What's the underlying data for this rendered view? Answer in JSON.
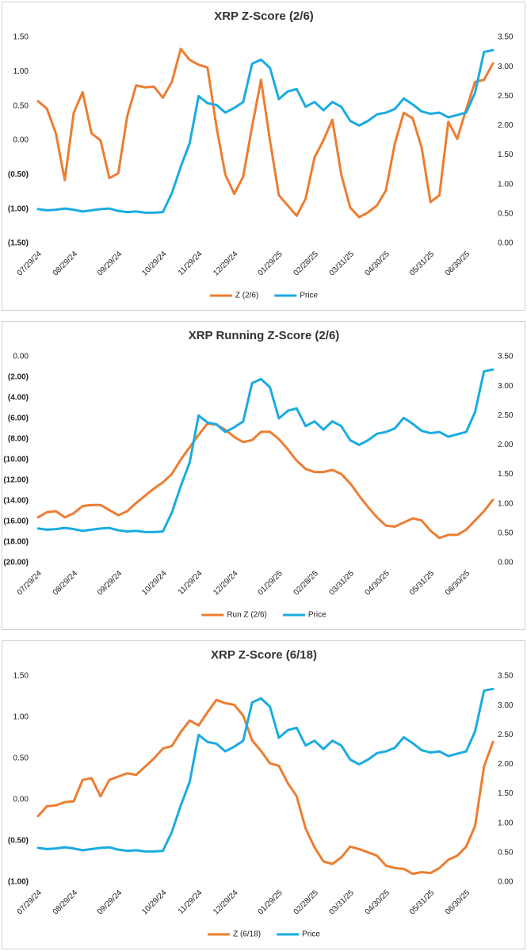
{
  "chart_data": [
    {
      "type": "line",
      "title": "XRP Z-Score (2/6)",
      "categories": [
        "07/29/24",
        null,
        null,
        null,
        "08/29/24",
        null,
        null,
        null,
        null,
        "09/29/24",
        null,
        null,
        null,
        null,
        "10/29/24",
        null,
        null,
        null,
        "11/29/24",
        null,
        null,
        null,
        "12/29/24",
        null,
        null,
        null,
        null,
        "01/29/25",
        null,
        null,
        null,
        "02/28/25",
        null,
        null,
        null,
        "03/31/25",
        null,
        null,
        null,
        "04/30/25",
        null,
        null,
        null,
        null,
        "05/31/25",
        null,
        null,
        null,
        "06/30/25",
        null,
        null,
        null
      ],
      "series": [
        {
          "name": "Z (2/6)",
          "color": "#ED7D31",
          "axis": "y",
          "values": [
            0.57,
            0.46,
            0.1,
            -0.58,
            0.4,
            0.7,
            0.1,
            0.0,
            -0.55,
            -0.48,
            0.35,
            0.8,
            0.77,
            0.78,
            0.62,
            0.85,
            1.33,
            1.17,
            1.1,
            1.06,
            0.2,
            -0.5,
            -0.78,
            -0.53,
            0.2,
            0.88,
            0.0,
            -0.8,
            -0.95,
            -1.1,
            -0.85,
            -0.25,
            0.0,
            0.3,
            -0.5,
            -0.98,
            -1.12,
            -1.05,
            -0.95,
            -0.73,
            -0.05,
            0.4,
            0.32,
            -0.1,
            -0.9,
            -0.8,
            0.27,
            0.02,
            0.45,
            0.85,
            0.88,
            1.12
          ]
        },
        {
          "name": "Price",
          "color": "#1AABE2",
          "axis": "y2",
          "values": [
            0.58,
            0.56,
            0.57,
            0.59,
            0.57,
            0.54,
            0.56,
            0.58,
            0.59,
            0.55,
            0.53,
            0.54,
            0.52,
            0.52,
            0.53,
            0.85,
            1.3,
            1.7,
            2.5,
            2.38,
            2.35,
            2.22,
            2.3,
            2.4,
            3.05,
            3.12,
            2.98,
            2.45,
            2.58,
            2.62,
            2.32,
            2.4,
            2.26,
            2.4,
            2.32,
            2.08,
            2.0,
            2.08,
            2.19,
            2.22,
            2.28,
            2.46,
            2.36,
            2.24,
            2.2,
            2.22,
            2.14,
            2.18,
            2.22,
            2.56,
            3.25,
            3.28
          ]
        }
      ],
      "ylim": [
        -1.5,
        1.5
      ],
      "yticks": [
        {
          "value": 1.5,
          "label": "1.50"
        },
        {
          "value": 1,
          "label": "1.00"
        },
        {
          "value": 0.5,
          "label": "0.50"
        },
        {
          "value": 0,
          "label": "0.00"
        },
        {
          "value": -0.5,
          "label": "(0.50)"
        },
        {
          "value": -1,
          "label": "(1.00)"
        },
        {
          "value": -1.5,
          "label": "(1.50)"
        }
      ],
      "y2lim": [
        0,
        3.5
      ],
      "y2ticks": [
        {
          "value": 0,
          "label": "0.00"
        },
        {
          "value": 0.5,
          "label": "0.50"
        },
        {
          "value": 1,
          "label": "1.00"
        },
        {
          "value": 1.5,
          "label": "1.50"
        },
        {
          "value": 2,
          "label": "2.00"
        },
        {
          "value": 2.5,
          "label": "2.50"
        },
        {
          "value": 3,
          "label": "3.00"
        },
        {
          "value": 3.5,
          "label": "3.50"
        }
      ],
      "legend": "bottom",
      "grid": false
    },
    {
      "type": "line",
      "title": "XRP Running Z-Score (2/6)",
      "categories": [
        "07/29/24",
        null,
        null,
        null,
        "08/29/24",
        null,
        null,
        null,
        null,
        "09/29/24",
        null,
        null,
        null,
        null,
        "10/29/24",
        null,
        null,
        null,
        "11/29/24",
        null,
        null,
        null,
        "12/29/24",
        null,
        null,
        null,
        null,
        "01/29/25",
        null,
        null,
        null,
        "02/28/25",
        null,
        null,
        null,
        "03/31/25",
        null,
        null,
        null,
        "04/30/25",
        null,
        null,
        null,
        null,
        "05/31/25",
        null,
        null,
        null,
        "06/30/25",
        null,
        null,
        null
      ],
      "series": [
        {
          "name": "Run Z (2/6)",
          "color": "#ED7D31",
          "axis": "y",
          "values": [
            -15.6,
            -15.1,
            -15.0,
            -15.6,
            -15.2,
            -14.5,
            -14.4,
            -14.4,
            -14.9,
            -15.4,
            -15.0,
            -14.2,
            -13.5,
            -12.8,
            -12.2,
            -11.4,
            -10.0,
            -8.8,
            -7.6,
            -6.5,
            -6.6,
            -7.1,
            -7.8,
            -8.3,
            -8.1,
            -7.3,
            -7.3,
            -8.0,
            -9.0,
            -10.1,
            -10.9,
            -11.2,
            -11.2,
            -11.0,
            -11.4,
            -12.3,
            -13.5,
            -14.6,
            -15.6,
            -16.4,
            -16.5,
            -16.1,
            -15.7,
            -15.9,
            -16.9,
            -17.6,
            -17.3,
            -17.3,
            -16.8,
            -15.9,
            -15.0,
            -13.9
          ]
        },
        {
          "name": "Price",
          "color": "#1AABE2",
          "axis": "y2",
          "values": [
            0.58,
            0.56,
            0.57,
            0.59,
            0.57,
            0.54,
            0.56,
            0.58,
            0.59,
            0.55,
            0.53,
            0.54,
            0.52,
            0.52,
            0.53,
            0.85,
            1.3,
            1.7,
            2.5,
            2.38,
            2.35,
            2.22,
            2.3,
            2.4,
            3.05,
            3.12,
            2.98,
            2.45,
            2.58,
            2.62,
            2.32,
            2.4,
            2.26,
            2.4,
            2.32,
            2.08,
            2.0,
            2.08,
            2.19,
            2.22,
            2.28,
            2.46,
            2.36,
            2.24,
            2.2,
            2.22,
            2.14,
            2.18,
            2.22,
            2.56,
            3.25,
            3.28
          ]
        }
      ],
      "ylim": [
        -20,
        0
      ],
      "yticks": [
        {
          "value": 0,
          "label": "0.00"
        },
        {
          "value": -2,
          "label": "(2.00)"
        },
        {
          "value": -4,
          "label": "(4.00)"
        },
        {
          "value": -6,
          "label": "(6.00)"
        },
        {
          "value": -8,
          "label": "(8.00)"
        },
        {
          "value": -10,
          "label": "(10.00)"
        },
        {
          "value": -12,
          "label": "(12.00)"
        },
        {
          "value": -14,
          "label": "(14.00)"
        },
        {
          "value": -16,
          "label": "(16.00)"
        },
        {
          "value": -18,
          "label": "(18.00)"
        },
        {
          "value": -20,
          "label": "(20.00)"
        }
      ],
      "y2lim": [
        0,
        3.5
      ],
      "y2ticks": [
        {
          "value": 0,
          "label": "0.00"
        },
        {
          "value": 0.5,
          "label": "0.50"
        },
        {
          "value": 1,
          "label": "1.00"
        },
        {
          "value": 1.5,
          "label": "1.50"
        },
        {
          "value": 2,
          "label": "2.00"
        },
        {
          "value": 2.5,
          "label": "2.50"
        },
        {
          "value": 3,
          "label": "3.00"
        },
        {
          "value": 3.5,
          "label": "3.50"
        }
      ],
      "legend": "bottom",
      "grid": false
    },
    {
      "type": "line",
      "title": "XRP Z-Score (6/18)",
      "categories": [
        "07/29/24",
        null,
        null,
        null,
        "08/29/24",
        null,
        null,
        null,
        null,
        "09/29/24",
        null,
        null,
        null,
        null,
        "10/29/24",
        null,
        null,
        null,
        "11/29/24",
        null,
        null,
        null,
        "12/29/24",
        null,
        null,
        null,
        null,
        "01/29/25",
        null,
        null,
        null,
        "02/28/25",
        null,
        null,
        null,
        "03/31/25",
        null,
        null,
        null,
        "04/30/25",
        null,
        null,
        null,
        null,
        "05/31/25",
        null,
        null,
        null,
        "06/30/25",
        null,
        null,
        null
      ],
      "series": [
        {
          "name": "Z (6/18)",
          "color": "#ED7D31",
          "axis": "y",
          "values": [
            -0.2,
            -0.08,
            -0.07,
            -0.03,
            -0.02,
            0.24,
            0.26,
            0.04,
            0.24,
            0.28,
            0.32,
            0.3,
            0.4,
            0.5,
            0.62,
            0.65,
            0.82,
            0.96,
            0.9,
            1.06,
            1.21,
            1.17,
            1.15,
            1.02,
            0.72,
            0.59,
            0.44,
            0.41,
            0.2,
            0.04,
            -0.35,
            -0.58,
            -0.75,
            -0.78,
            -0.7,
            -0.57,
            -0.6,
            -0.64,
            -0.68,
            -0.8,
            -0.83,
            -0.84,
            -0.9,
            -0.88,
            -0.89,
            -0.83,
            -0.73,
            -0.68,
            -0.57,
            -0.32,
            0.4,
            0.7
          ]
        },
        {
          "name": "Price",
          "color": "#1AABE2",
          "axis": "y2",
          "values": [
            0.58,
            0.56,
            0.57,
            0.59,
            0.57,
            0.54,
            0.56,
            0.58,
            0.59,
            0.55,
            0.53,
            0.54,
            0.52,
            0.52,
            0.53,
            0.85,
            1.3,
            1.7,
            2.5,
            2.38,
            2.35,
            2.22,
            2.3,
            2.4,
            3.05,
            3.12,
            2.98,
            2.45,
            2.58,
            2.62,
            2.32,
            2.4,
            2.26,
            2.4,
            2.32,
            2.08,
            2.0,
            2.08,
            2.19,
            2.22,
            2.28,
            2.46,
            2.36,
            2.24,
            2.2,
            2.22,
            2.14,
            2.18,
            2.22,
            2.56,
            3.25,
            3.28
          ]
        }
      ],
      "ylim": [
        -1,
        1.5
      ],
      "yticks": [
        {
          "value": 1.5,
          "label": "1.50"
        },
        {
          "value": 1,
          "label": "1.00"
        },
        {
          "value": 0.5,
          "label": "0.50"
        },
        {
          "value": 0,
          "label": "0.00"
        },
        {
          "value": -0.5,
          "label": "(0.50)"
        },
        {
          "value": -1,
          "label": "(1.00)"
        }
      ],
      "y2lim": [
        0,
        3.5
      ],
      "y2ticks": [
        {
          "value": 0,
          "label": "0.00"
        },
        {
          "value": 0.5,
          "label": "0.50"
        },
        {
          "value": 1,
          "label": "1.00"
        },
        {
          "value": 1.5,
          "label": "1.50"
        },
        {
          "value": 2,
          "label": "2.00"
        },
        {
          "value": 2.5,
          "label": "2.50"
        },
        {
          "value": 3,
          "label": "3.00"
        },
        {
          "value": 3.5,
          "label": "3.50"
        }
      ],
      "legend": "bottom",
      "grid": false
    }
  ]
}
